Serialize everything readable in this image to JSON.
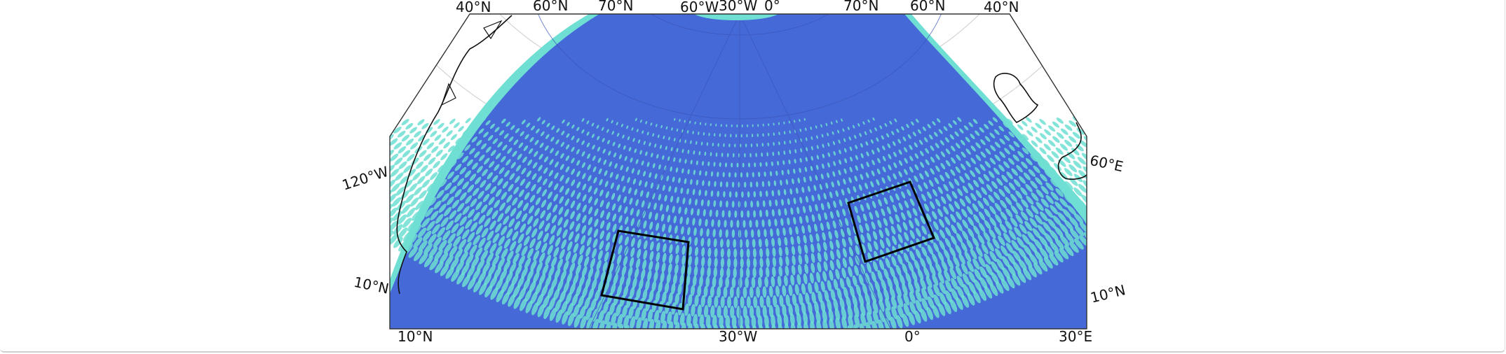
{
  "map": {
    "projection": "azimuthal",
    "colors": {
      "ocean": "#4669d8",
      "ocean_dark": "#3d5fcf",
      "coverage_edge": "#6edfd2",
      "gaps": "#6edfd2",
      "coast": "#111111",
      "graticule": "#d0d0d0",
      "box": "#000000"
    },
    "top_labels": [
      "40°N",
      "60°N",
      "70°N",
      "60°W",
      "30°W",
      "0°",
      "70°N",
      "60°N",
      "40°N"
    ],
    "left_labels": [
      "120°W",
      "10°N"
    ],
    "right_labels": [
      "60°E",
      "10°N"
    ],
    "bottom_labels": [
      "10°N",
      "30°W",
      "0°",
      "30°E"
    ],
    "study_boxes": [
      "box-west",
      "box-east"
    ]
  }
}
